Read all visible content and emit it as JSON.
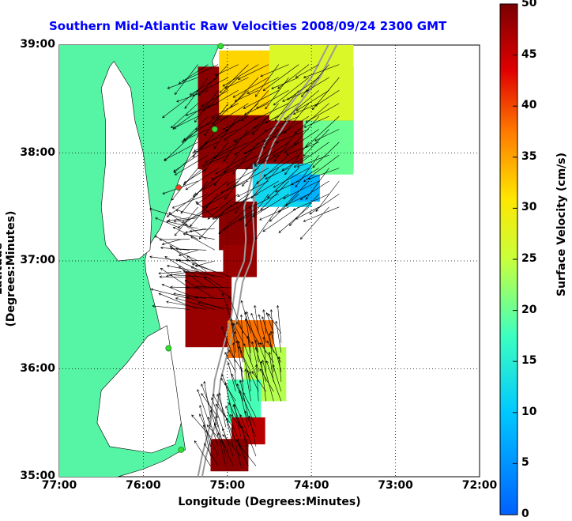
{
  "chart_data": {
    "type": "map",
    "title": "Southern Mid-Atlantic Raw Velocities 2008/09/24 2300 GMT",
    "xlabel": "Longitude (Degrees:Minutes)",
    "ylabel": "Latitude (Degrees:Minutes)",
    "colorbar_label": "Surface Velocity (cm/s)",
    "xlim": [
      -77,
      -72
    ],
    "ylim": [
      35,
      39
    ],
    "x_ticks": [
      -77,
      -76,
      -75,
      -74,
      -73,
      -72
    ],
    "x_tick_labels": [
      "77:00",
      "76:00",
      "75:00",
      "74:00",
      "73:00",
      "72:00"
    ],
    "y_ticks": [
      35,
      36,
      37,
      38,
      39
    ],
    "y_tick_labels": [
      "35:00",
      "36:00",
      "37:00",
      "38:00",
      "39:00"
    ],
    "colorbar_range": [
      0,
      50
    ],
    "colorbar_ticks": [
      0,
      5,
      10,
      15,
      20,
      25,
      30,
      35,
      40,
      45,
      50
    ],
    "colorbar_tick_labels": [
      "0",
      "5",
      "10",
      "15",
      "20",
      "25",
      "30",
      "35",
      "40",
      "45",
      "50"
    ],
    "grid": true,
    "colors": {
      "land": "#55f5a5",
      "water": "#ffffff",
      "title": "#0000ff",
      "bathymetry": "#9a9a9a",
      "station": "#33dd33"
    },
    "coastline": [
      [
        -75.1,
        39.0
      ],
      [
        -75.18,
        38.85
      ],
      [
        -75.1,
        38.6
      ],
      [
        -75.3,
        38.25
      ],
      [
        -75.5,
        37.9
      ],
      [
        -75.65,
        37.6
      ],
      [
        -75.8,
        37.3
      ],
      [
        -75.95,
        37.12
      ],
      [
        -75.98,
        37.0
      ],
      [
        -75.97,
        36.9
      ],
      [
        -75.85,
        36.55
      ],
      [
        -75.75,
        36.2
      ],
      [
        -75.65,
        35.85
      ],
      [
        -75.55,
        35.5
      ],
      [
        -75.5,
        35.25
      ],
      [
        -75.6,
        35.22
      ],
      [
        -75.75,
        35.15
      ],
      [
        -76.0,
        35.07
      ],
      [
        -76.3,
        35.0
      ]
    ],
    "bay": [
      [
        -76.35,
        38.85
      ],
      [
        -76.15,
        38.6
      ],
      [
        -76.1,
        38.3
      ],
      [
        -76.0,
        38.0
      ],
      [
        -75.95,
        37.7
      ],
      [
        -75.9,
        37.4
      ],
      [
        -75.92,
        37.1
      ],
      [
        -76.05,
        37.02
      ],
      [
        -76.3,
        37.0
      ],
      [
        -76.45,
        37.15
      ],
      [
        -76.5,
        37.5
      ],
      [
        -76.45,
        37.9
      ],
      [
        -76.45,
        38.3
      ],
      [
        -76.5,
        38.6
      ],
      [
        -76.4,
        38.8
      ]
    ],
    "sound": [
      [
        -75.72,
        36.4
      ],
      [
        -75.62,
        35.9
      ],
      [
        -75.55,
        35.5
      ],
      [
        -75.62,
        35.3
      ],
      [
        -75.9,
        35.22
      ],
      [
        -76.4,
        35.28
      ],
      [
        -76.55,
        35.5
      ],
      [
        -76.5,
        35.8
      ],
      [
        -76.2,
        36.05
      ],
      [
        -75.95,
        36.3
      ]
    ],
    "bathymetry": [
      [
        [
          -73.8,
          39.0
        ],
        [
          -74.0,
          38.7
        ],
        [
          -74.3,
          38.4
        ],
        [
          -74.55,
          38.1
        ],
        [
          -74.7,
          37.8
        ],
        [
          -74.8,
          37.5
        ],
        [
          -74.78,
          37.2
        ],
        [
          -74.8,
          37.0
        ],
        [
          -74.9,
          36.8
        ],
        [
          -74.95,
          36.5
        ],
        [
          -75.05,
          36.2
        ],
        [
          -75.15,
          35.9
        ],
        [
          -75.2,
          35.5
        ],
        [
          -75.3,
          35.2
        ],
        [
          -75.35,
          35.0
        ]
      ],
      [
        [
          -73.7,
          39.0
        ],
        [
          -73.9,
          38.7
        ],
        [
          -74.2,
          38.4
        ],
        [
          -74.45,
          38.1
        ],
        [
          -74.6,
          37.8
        ],
        [
          -74.7,
          37.5
        ],
        [
          -74.68,
          37.2
        ],
        [
          -74.72,
          37.0
        ],
        [
          -74.82,
          36.8
        ],
        [
          -74.88,
          36.5
        ],
        [
          -74.98,
          36.2
        ],
        [
          -75.08,
          35.9
        ],
        [
          -75.14,
          35.5
        ],
        [
          -75.25,
          35.2
        ],
        [
          -75.3,
          35.0
        ]
      ]
    ],
    "stations": [
      {
        "lon": -75.08,
        "lat": 38.99,
        "color": "#33dd33"
      },
      {
        "lon": -75.15,
        "lat": 38.22,
        "color": "#33dd33"
      },
      {
        "lon": -75.58,
        "lat": 37.68,
        "color": "#ff3333"
      },
      {
        "lon": -75.7,
        "lat": 36.19,
        "color": "#33dd33"
      },
      {
        "lon": -75.55,
        "lat": 35.25,
        "color": "#33dd33"
      }
    ],
    "velocity_regions": [
      {
        "lon": [
          -75.35,
          -73.5
        ],
        "lat": [
          37.85,
          38.8
        ],
        "speed": 49
      },
      {
        "lon": [
          -75.1,
          -74.4
        ],
        "lat": [
          38.35,
          38.95
        ],
        "speed": 32
      },
      {
        "lon": [
          -74.5,
          -73.5
        ],
        "lat": [
          38.3,
          39.0
        ],
        "speed": 27
      },
      {
        "lon": [
          -74.1,
          -73.5
        ],
        "lat": [
          37.8,
          38.3
        ],
        "speed": 20
      },
      {
        "lon": [
          -74.7,
          -74.0
        ],
        "lat": [
          37.5,
          37.9
        ],
        "speed": 12
      },
      {
        "lon": [
          -74.25,
          -73.9
        ],
        "lat": [
          37.55,
          37.8
        ],
        "speed": 8
      },
      {
        "lon": [
          -75.3,
          -74.9
        ],
        "lat": [
          37.4,
          37.9
        ],
        "speed": 48
      },
      {
        "lon": [
          -75.1,
          -74.65
        ],
        "lat": [
          37.1,
          37.55
        ],
        "speed": 49
      },
      {
        "lon": [
          -75.05,
          -74.65
        ],
        "lat": [
          36.85,
          37.15
        ],
        "speed": 48
      },
      {
        "lon": [
          -75.5,
          -74.95
        ],
        "lat": [
          36.2,
          36.9
        ],
        "speed": 48
      },
      {
        "lon": [
          -75.0,
          -74.45
        ],
        "lat": [
          36.1,
          36.45
        ],
        "speed": 38
      },
      {
        "lon": [
          -74.8,
          -74.3
        ],
        "lat": [
          35.7,
          36.2
        ],
        "speed": 24
      },
      {
        "lon": [
          -75.0,
          -74.6
        ],
        "lat": [
          35.5,
          35.9
        ],
        "speed": 18
      },
      {
        "lon": [
          -74.95,
          -74.55
        ],
        "lat": [
          35.3,
          35.55
        ],
        "speed": 46
      },
      {
        "lon": [
          -75.2,
          -74.75
        ],
        "lat": [
          35.05,
          35.35
        ],
        "speed": 49
      }
    ],
    "vector_fields": [
      {
        "lon": [
          -75.35,
          -73.6
        ],
        "lat": [
          37.5,
          38.9
        ],
        "step": 0.12,
        "u": -0.35,
        "v": -0.2
      },
      {
        "lon": [
          -75.55,
          -75.1
        ],
        "lat": [
          36.9,
          37.5
        ],
        "step": 0.1,
        "u": -0.3,
        "v": 0.05
      },
      {
        "lon": [
          -75.45,
          -74.95
        ],
        "lat": [
          36.55,
          36.9
        ],
        "step": 0.1,
        "u": -0.4,
        "v": 0.1
      },
      {
        "lon": [
          -74.9,
          -74.35
        ],
        "lat": [
          35.7,
          36.4
        ],
        "step": 0.09,
        "u": -0.1,
        "v": 0.28
      },
      {
        "lon": [
          -75.2,
          -74.6
        ],
        "lat": [
          35.1,
          35.6
        ],
        "step": 0.09,
        "u": -0.15,
        "v": 0.3
      }
    ]
  }
}
